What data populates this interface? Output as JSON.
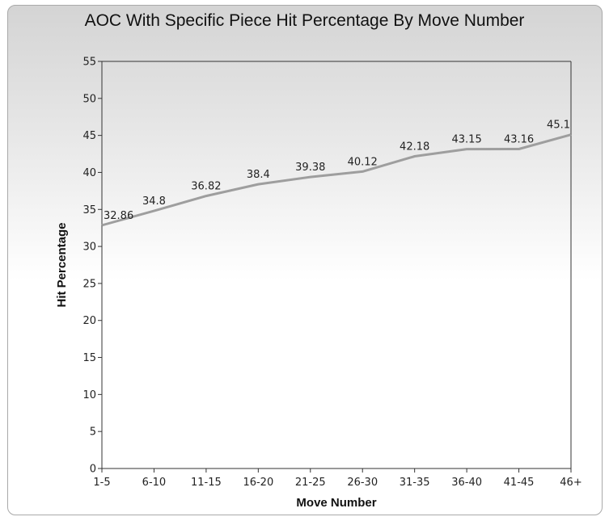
{
  "chart_data": {
    "type": "line",
    "title": "AOC With Specific Piece Hit Percentage By Move Number",
    "xlabel": "Move Number",
    "ylabel": "Hit Percentage",
    "categories": [
      "1-5",
      "6-10",
      "11-15",
      "16-20",
      "21-25",
      "26-30",
      "31-35",
      "36-40",
      "41-45",
      "46+"
    ],
    "series": [
      {
        "values": [
          32.86,
          34.8,
          36.82,
          38.4,
          39.38,
          40.12,
          42.18,
          43.15,
          43.16,
          45.1
        ],
        "labels": [
          "32.86",
          "34.8",
          "36.82",
          "38.4",
          "39.38",
          "40.12",
          "42.18",
          "43.15",
          "43.16",
          "45.1"
        ]
      }
    ],
    "ylim": [
      0,
      55
    ],
    "yticks": [
      0,
      5,
      10,
      15,
      20,
      25,
      30,
      35,
      40,
      45,
      50,
      55
    ],
    "grid": false,
    "legend": "none",
    "colors": {
      "line": "#9e9e9e",
      "axis": "#333333",
      "border": "#a9a9a9"
    }
  }
}
